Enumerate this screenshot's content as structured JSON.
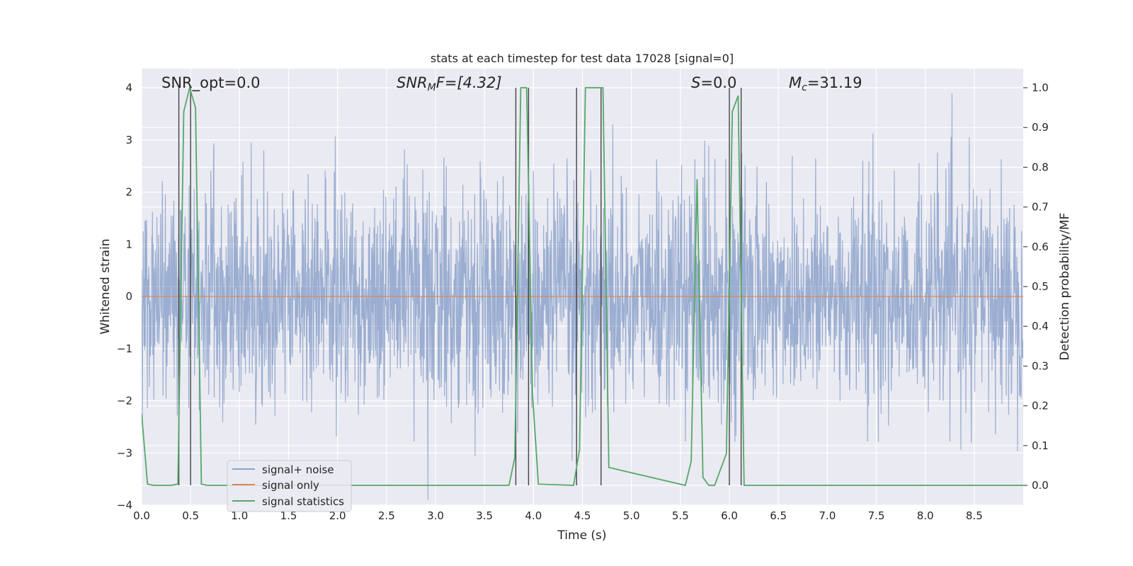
{
  "chart_data": {
    "type": "line",
    "title": "stats at each timestep for test data 17028 [signal=0]",
    "xlabel": "Time (s)",
    "ylabel_left": "Whitened strain",
    "ylabel_right": "Detection probability/MF",
    "xlim": [
      0.0,
      9.0
    ],
    "ylim_left": [
      -4.0,
      4.35
    ],
    "ylim_right": [
      -0.05,
      1.035
    ],
    "xticks": [
      "0.0",
      "0.5",
      "1.0",
      "1.5",
      "2.0",
      "2.5",
      "3.0",
      "3.5",
      "4.0",
      "4.5",
      "5.0",
      "5.5",
      "6.0",
      "6.5",
      "7.0",
      "7.5",
      "8.0",
      "8.5"
    ],
    "yticks_left": [
      "4",
      "3",
      "2",
      "1",
      "0",
      "−1",
      "−2",
      "−3",
      "−4"
    ],
    "yticks_right": [
      "1.0",
      "0.9",
      "0.8",
      "0.7",
      "0.6",
      "0.5",
      "0.4",
      "0.3",
      "0.2",
      "0.1",
      "0.0"
    ],
    "grid": true,
    "legend_placement": "lower-left",
    "annotations": {
      "snr_opt": "SNR_opt=0.0",
      "snr_mf_main": "SNR",
      "snr_mf_sub": "M",
      "snr_mf_tail": "F=[4.32]",
      "s_main": "S",
      "s_tail": "=0.0",
      "mc_main": "M",
      "mc_sub": "c",
      "mc_tail": "=31.19"
    },
    "series": [
      {
        "name": "signal+ noise",
        "color": "#4c72b0",
        "axis": "left",
        "description_values": "white gaussian-like noise, amplitude mostly within ±2, peaks up to about ±3.9",
        "typical_range": [
          -3.9,
          3.9
        ]
      },
      {
        "name": "signal only",
        "color": "#dd8452",
        "axis": "left",
        "x": [
          0.0,
          9.0
        ],
        "y": [
          0.0,
          0.0
        ]
      },
      {
        "name": "signal statistics",
        "color": "#55a868",
        "axis": "right",
        "x": [
          0.0,
          0.06,
          0.12,
          0.3,
          0.37,
          0.43,
          0.49,
          0.55,
          0.61,
          0.67,
          0.73,
          3.75,
          3.81,
          3.87,
          3.93,
          3.99,
          4.05,
          4.41,
          4.47,
          4.53,
          4.59,
          4.65,
          4.71,
          4.77,
          5.55,
          5.61,
          5.67,
          5.73,
          5.79,
          5.85,
          5.97,
          6.03,
          6.09,
          6.15,
          6.21,
          6.27,
          9.0
        ],
        "y": [
          0.18,
          0.003,
          0.0,
          0.0,
          0.003,
          0.94,
          1.0,
          0.95,
          0.003,
          0.0,
          0.0,
          0.0,
          0.07,
          1.0,
          1.0,
          0.23,
          0.003,
          0.0,
          0.09,
          1.0,
          1.0,
          1.0,
          1.0,
          0.045,
          0.0,
          0.06,
          0.77,
          0.02,
          0.0,
          0.0,
          0.08,
          0.94,
          0.98,
          0.0,
          0.0,
          0.0,
          0.0
        ]
      }
    ],
    "vertical_markers_s": [
      0.38,
      0.5,
      3.82,
      3.95,
      4.44,
      4.69,
      6.0,
      6.12
    ]
  }
}
